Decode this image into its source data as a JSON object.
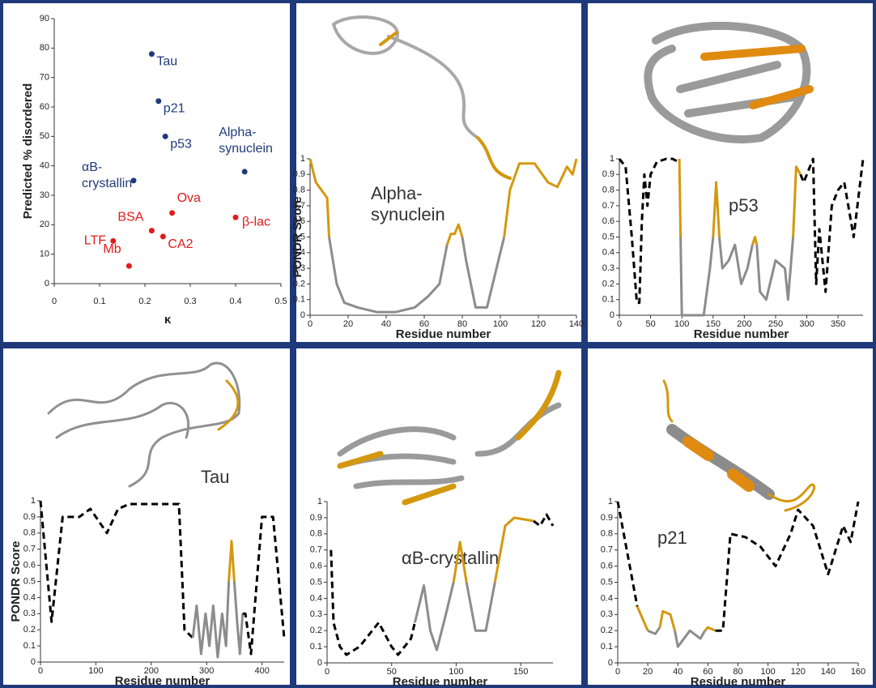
{
  "chart_data": [
    {
      "type": "scatter",
      "xlabel": "κ",
      "ylabel": "Predicted % disordered",
      "xlim": [
        0,
        0.5
      ],
      "xticks": [
        0,
        0.1,
        0.2,
        0.3,
        0.4,
        0.5
      ],
      "ylim": [
        0,
        90
      ],
      "yticks": [
        0,
        10,
        20,
        30,
        40,
        50,
        60,
        70,
        80,
        90
      ],
      "points": [
        {
          "label": [
            "Tau"
          ],
          "x": 0.215,
          "y": 78,
          "color": "#1f3a7a"
        },
        {
          "label": [
            "p21"
          ],
          "x": 0.23,
          "y": 62,
          "color": "#1f3a7a"
        },
        {
          "label": [
            "p53"
          ],
          "x": 0.245,
          "y": 50,
          "color": "#1f3a7a"
        },
        {
          "label": [
            "Alpha-",
            "synuclein"
          ],
          "x": 0.42,
          "y": 38,
          "color": "#1f3a7a"
        },
        {
          "label": [
            "αB-",
            "crystallin"
          ],
          "x": 0.175,
          "y": 35,
          "color": "#1f3a7a"
        },
        {
          "label": [
            "Ova"
          ],
          "x": 0.26,
          "y": 24,
          "color": "#e01b1b"
        },
        {
          "label": [
            "β-lac"
          ],
          "x": 0.4,
          "y": 22.5,
          "color": "#e01b1b"
        },
        {
          "label": [
            "BSA"
          ],
          "x": 0.215,
          "y": 18,
          "color": "#e01b1b"
        },
        {
          "label": [
            "CA2"
          ],
          "x": 0.24,
          "y": 16,
          "color": "#e01b1b"
        },
        {
          "label": [
            "LTF"
          ],
          "x": 0.13,
          "y": 14.5,
          "color": "#e01b1b"
        },
        {
          "label": [
            "Mb"
          ],
          "x": 0.165,
          "y": 6,
          "color": "#e01b1b"
        }
      ]
    },
    {
      "type": "line",
      "annotation": [
        "Alpha-",
        "synuclein"
      ],
      "xlabel": "Residue number",
      "ylabel": "PONDR Score",
      "xlim": [
        0,
        140
      ],
      "xticks": [
        0,
        20,
        40,
        60,
        80,
        100,
        120,
        140
      ],
      "ylim": [
        0,
        1
      ],
      "yticks": [
        0,
        0.1,
        0.2,
        0.3,
        0.4,
        0.5,
        0.6,
        0.7,
        0.8,
        0.9,
        1
      ],
      "series": [
        {
          "color": "#d4980f",
          "dashed": false,
          "x": [
            0,
            3,
            6,
            9,
            10
          ],
          "values": [
            1,
            0.85,
            0.8,
            0.75,
            0.5
          ]
        },
        {
          "color": "#8c8c8c",
          "dashed": false,
          "x": [
            10,
            14,
            18,
            25,
            35,
            45,
            55,
            62,
            68,
            72
          ],
          "values": [
            0.5,
            0.2,
            0.08,
            0.05,
            0.02,
            0.02,
            0.05,
            0.12,
            0.2,
            0.45
          ]
        },
        {
          "color": "#d4980f",
          "dashed": false,
          "x": [
            72,
            74,
            76,
            78,
            80
          ],
          "values": [
            0.45,
            0.52,
            0.52,
            0.58,
            0.5
          ]
        },
        {
          "color": "#8c8c8c",
          "dashed": false,
          "x": [
            80,
            82,
            87,
            93,
            98,
            102
          ],
          "values": [
            0.5,
            0.35,
            0.05,
            0.05,
            0.3,
            0.5
          ]
        },
        {
          "color": "#d4980f",
          "dashed": false,
          "x": [
            102,
            105,
            110,
            118,
            125,
            130,
            135,
            138,
            140
          ],
          "values": [
            0.5,
            0.8,
            0.97,
            0.97,
            0.85,
            0.82,
            0.95,
            0.9,
            1
          ]
        }
      ]
    },
    {
      "type": "line",
      "annotation": [
        "p53"
      ],
      "xlabel": "Residue number",
      "xlim": [
        0,
        390
      ],
      "xticks": [
        0,
        50,
        100,
        150,
        200,
        250,
        300,
        350
      ],
      "ylim": [
        0,
        1
      ],
      "yticks": [
        0,
        0.1,
        0.2,
        0.3,
        0.4,
        0.5,
        0.6,
        0.7,
        0.8,
        0.9,
        1
      ],
      "series": [
        {
          "color": "#000000",
          "dashed": true,
          "x": [
            0,
            10,
            20,
            28,
            32,
            36,
            40,
            45,
            50,
            60,
            75,
            85,
            95
          ],
          "values": [
            1,
            0.95,
            0.5,
            0.08,
            0.08,
            0.6,
            0.9,
            0.7,
            0.9,
            0.98,
            1,
            1,
            0.98
          ]
        },
        {
          "color": "#d4980f",
          "dashed": false,
          "x": [
            96,
            98
          ],
          "values": [
            1,
            0.5
          ]
        },
        {
          "color": "#8c8c8c",
          "dashed": false,
          "x": [
            98,
            100,
            135,
            145,
            150
          ],
          "values": [
            0.5,
            0,
            0,
            0.3,
            0.5
          ]
        },
        {
          "color": "#d4980f",
          "dashed": false,
          "x": [
            150,
            155,
            160
          ],
          "values": [
            0.5,
            0.85,
            0.5
          ]
        },
        {
          "color": "#8c8c8c",
          "dashed": false,
          "x": [
            160,
            165,
            175,
            185,
            195,
            205,
            213
          ],
          "values": [
            0.5,
            0.3,
            0.35,
            0.45,
            0.2,
            0.3,
            0.45
          ]
        },
        {
          "color": "#d4980f",
          "dashed": false,
          "x": [
            213,
            217,
            220
          ],
          "values": [
            0.45,
            0.5,
            0.45
          ]
        },
        {
          "color": "#8c8c8c",
          "dashed": false,
          "x": [
            220,
            225,
            235,
            250,
            265,
            270,
            278
          ],
          "values": [
            0.45,
            0.15,
            0.1,
            0.35,
            0.3,
            0.1,
            0.5
          ]
        },
        {
          "color": "#d4980f",
          "dashed": false,
          "x": [
            278,
            283,
            290
          ],
          "values": [
            0.5,
            0.95,
            0.9
          ]
        },
        {
          "color": "#000000",
          "dashed": true,
          "x": [
            290,
            295,
            310,
            315,
            320,
            330,
            340,
            350,
            360,
            375,
            390
          ],
          "values": [
            0.9,
            0.85,
            1,
            0.2,
            0.55,
            0.15,
            0.7,
            0.8,
            0.85,
            0.5,
            1
          ]
        }
      ]
    },
    {
      "type": "line",
      "annotation": [
        "Tau"
      ],
      "xlabel": "Residue number",
      "ylabel": "PONDR Score",
      "xlim": [
        0,
        440
      ],
      "xticks": [
        0,
        100,
        200,
        300,
        400
      ],
      "ylim": [
        0,
        1
      ],
      "yticks": [
        0,
        0.1,
        0.2,
        0.3,
        0.4,
        0.5,
        0.6,
        0.7,
        0.8,
        0.9,
        1
      ],
      "series": [
        {
          "color": "#000000",
          "dashed": true,
          "x": [
            0,
            20,
            40,
            70,
            90,
            120,
            140,
            160,
            250,
            260,
            275
          ],
          "values": [
            1,
            0.25,
            0.9,
            0.9,
            0.95,
            0.8,
            0.95,
            0.98,
            0.98,
            0.2,
            0.15
          ]
        },
        {
          "color": "#8c8c8c",
          "dashed": false,
          "x": [
            275,
            282,
            290,
            298,
            305,
            312,
            320,
            328,
            335,
            340
          ],
          "values": [
            0.15,
            0.35,
            0.05,
            0.3,
            0.1,
            0.35,
            0.03,
            0.3,
            0.1,
            0.5
          ]
        },
        {
          "color": "#d4980f",
          "dashed": false,
          "x": [
            340,
            345,
            350
          ],
          "values": [
            0.5,
            0.75,
            0.5
          ]
        },
        {
          "color": "#8c8c8c",
          "dashed": false,
          "x": [
            350,
            355,
            360,
            365
          ],
          "values": [
            0.5,
            0.25,
            0.05,
            0.3
          ]
        },
        {
          "color": "#000000",
          "dashed": true,
          "x": [
            365,
            370,
            380,
            400,
            420,
            440
          ],
          "values": [
            0.3,
            0.3,
            0.05,
            0.9,
            0.9,
            0.15
          ]
        }
      ]
    },
    {
      "type": "line",
      "annotation": [
        "αB-crystallin"
      ],
      "xlabel": "Residue number",
      "xlim": [
        0,
        175
      ],
      "xticks": [
        0,
        50,
        100,
        150
      ],
      "ylim": [
        0,
        1
      ],
      "yticks": [
        0,
        0.1,
        0.2,
        0.3,
        0.4,
        0.5,
        0.6,
        0.7,
        0.8,
        0.9,
        1
      ],
      "series": [
        {
          "color": "#000000",
          "dashed": true,
          "x": [
            3,
            5,
            10,
            15,
            25,
            40,
            50,
            55,
            65,
            68
          ],
          "values": [
            0.7,
            0.25,
            0.1,
            0.05,
            0.1,
            0.25,
            0.1,
            0.05,
            0.15,
            0.25
          ]
        },
        {
          "color": "#8c8c8c",
          "dashed": false,
          "x": [
            68,
            75,
            80,
            85,
            92,
            98
          ],
          "values": [
            0.25,
            0.48,
            0.2,
            0.08,
            0.3,
            0.5
          ]
        },
        {
          "color": "#d4980f",
          "dashed": false,
          "x": [
            98,
            103,
            108
          ],
          "values": [
            0.5,
            0.75,
            0.5
          ]
        },
        {
          "color": "#8c8c8c",
          "dashed": false,
          "x": [
            108,
            115,
            123,
            130
          ],
          "values": [
            0.5,
            0.2,
            0.2,
            0.5
          ]
        },
        {
          "color": "#d4980f",
          "dashed": false,
          "x": [
            130,
            138,
            145,
            160
          ],
          "values": [
            0.5,
            0.85,
            0.9,
            0.88
          ]
        },
        {
          "color": "#000000",
          "dashed": true,
          "x": [
            160,
            165,
            170,
            175
          ],
          "values": [
            0.88,
            0.85,
            0.92,
            0.85
          ]
        }
      ]
    },
    {
      "type": "line",
      "annotation": [
        "p21"
      ],
      "xlabel": "Residue number",
      "xlim": [
        0,
        160
      ],
      "xticks": [
        0,
        20,
        40,
        60,
        80,
        100,
        120,
        140,
        160
      ],
      "ylim": [
        0,
        1
      ],
      "yticks": [
        0,
        0.1,
        0.2,
        0.3,
        0.4,
        0.5,
        0.6,
        0.7,
        0.8,
        0.9,
        1
      ],
      "series": [
        {
          "color": "#000000",
          "dashed": true,
          "x": [
            0,
            3,
            8,
            13
          ],
          "values": [
            1,
            0.85,
            0.6,
            0.35
          ]
        },
        {
          "color": "#d4980f",
          "dashed": false,
          "x": [
            13,
            20
          ],
          "values": [
            0.35,
            0.2
          ]
        },
        {
          "color": "#8c8c8c",
          "dashed": false,
          "x": [
            20,
            25,
            28
          ],
          "values": [
            0.2,
            0.18,
            0.22
          ]
        },
        {
          "color": "#d4980f",
          "dashed": false,
          "x": [
            28,
            30,
            35,
            38
          ],
          "values": [
            0.22,
            0.32,
            0.3,
            0.2
          ]
        },
        {
          "color": "#8c8c8c",
          "dashed": false,
          "x": [
            38,
            40,
            48,
            55,
            58
          ],
          "values": [
            0.2,
            0.1,
            0.2,
            0.15,
            0.2
          ]
        },
        {
          "color": "#d4980f",
          "dashed": false,
          "x": [
            58,
            60,
            65
          ],
          "values": [
            0.2,
            0.22,
            0.2
          ]
        },
        {
          "color": "#000000",
          "dashed": true,
          "x": [
            65,
            70,
            75,
            85,
            95,
            105,
            115,
            120,
            130,
            140,
            150,
            155,
            160
          ],
          "values": [
            0.2,
            0.2,
            0.8,
            0.78,
            0.72,
            0.6,
            0.8,
            0.95,
            0.85,
            0.55,
            0.85,
            0.75,
            1
          ]
        }
      ]
    }
  ]
}
